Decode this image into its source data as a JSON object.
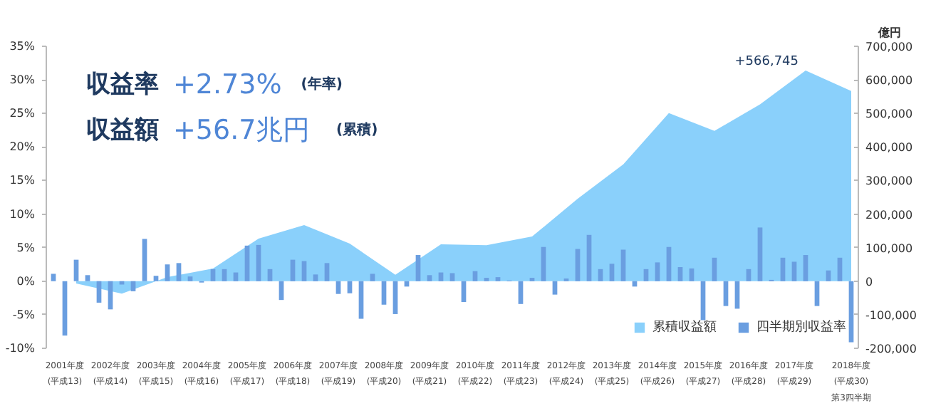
{
  "chart_data": {
    "type": "bar",
    "annotations": [
      "収益率 +2.73% (年率)",
      "収益額 +56.7兆円 (累積)",
      "+566,745"
    ],
    "categories": [
      null,
      "2001年度\n(平成13)",
      null,
      null,
      null,
      "2002年度\n(平成14)",
      null,
      null,
      null,
      "2003年度\n(平成15)",
      null,
      null,
      null,
      "2004年度\n(平成16)",
      null,
      null,
      null,
      "2005年度\n(平成17)",
      null,
      null,
      null,
      "2006年度\n(平成18)",
      null,
      null,
      null,
      "2007年度\n(平成19)",
      null,
      null,
      null,
      "2008年度\n(平成20)",
      null,
      null,
      null,
      "2009年度\n(平成21)",
      null,
      null,
      null,
      "2010年度\n(平成22)",
      null,
      null,
      null,
      "2011年度\n(平成23)",
      null,
      null,
      null,
      "2012年度\n(平成24)",
      null,
      null,
      null,
      "2013年度\n(平成25)",
      null,
      null,
      null,
      "2014年度\n(平成26)",
      null,
      null,
      null,
      "2015年度\n(平成27)",
      null,
      null,
      null,
      "2016年度\n(平成28)",
      null,
      null,
      null,
      "2017年度\n(平成29)",
      null,
      null,
      null,
      null,
      "2018年度\n(平成30)\n第3四半期"
    ],
    "ylim": [
      -10,
      35
    ],
    "yticks": [
      {
        "value": -10,
        "label": "-10%"
      },
      {
        "value": -5,
        "label": "-5%"
      },
      {
        "value": 0,
        "label": "0%"
      },
      {
        "value": 5,
        "label": "5%"
      },
      {
        "value": 10,
        "label": "10%"
      },
      {
        "value": 15,
        "label": "15%"
      },
      {
        "value": 20,
        "label": "20%"
      },
      {
        "value": 25,
        "label": "25%"
      },
      {
        "value": 30,
        "label": "30%"
      },
      {
        "value": 35,
        "label": "35%"
      }
    ],
    "y2label": "億円",
    "y2lim": [
      -200000,
      700000
    ],
    "y2ticks": [
      {
        "value": -200000,
        "label": "-200,000"
      },
      {
        "value": -100000,
        "label": "-100,000"
      },
      0,
      {
        "value": 100000,
        "label": "100,000"
      },
      {
        "value": 200000,
        "label": "200,000"
      },
      {
        "value": 300000,
        "label": "300,000"
      },
      {
        "value": 400000,
        "label": "400,000"
      },
      {
        "value": 500000,
        "label": "500,000"
      },
      {
        "value": 600000,
        "label": "600,000"
      },
      {
        "value": 700000,
        "label": "700,000"
      }
    ],
    "grid": false,
    "legend": "bottom right",
    "series": [
      {
        "name": "累積収益額",
        "type": "area",
        "axis": "y2",
        "color": "#8ad0fb",
        "values": [
          null,
          null,
          -7000,
          null,
          null,
          null,
          -37000,
          null,
          null,
          null,
          12000,
          null,
          null,
          null,
          38000,
          null,
          null,
          null,
          127000,
          null,
          null,
          null,
          167000,
          null,
          null,
          null,
          112000,
          null,
          null,
          null,
          19000,
          null,
          null,
          null,
          110000,
          null,
          null,
          null,
          107000,
          null,
          null,
          null,
          133000,
          null,
          null,
          null,
          246000,
          null,
          null,
          null,
          348000,
          null,
          null,
          null,
          501000,
          null,
          null,
          null,
          448000,
          null,
          null,
          null,
          527000,
          null,
          null,
          null,
          628000,
          null,
          null,
          null,
          566745
        ]
      },
      {
        "name": "四半期別収益率",
        "color": "#6a9ee0",
        "values": [
          1.1,
          -8.1,
          3.2,
          0.9,
          -3.2,
          -4.2,
          -0.5,
          -1.5,
          6.3,
          0.8,
          2.5,
          2.7,
          0.7,
          -0.2,
          1.8,
          1.8,
          1.3,
          5.3,
          5.4,
          1.8,
          -2.8,
          3.2,
          3.0,
          1.0,
          2.7,
          -1.9,
          -1.8,
          -5.6,
          1.1,
          -3.5,
          -4.9,
          -0.8,
          3.9,
          0.9,
          1.3,
          1.2,
          -3.1,
          1.5,
          0.5,
          0.6,
          0.1,
          -3.4,
          0.5,
          5.1,
          -2.0,
          0.4,
          4.8,
          6.9,
          1.8,
          2.6,
          4.7,
          -0.8,
          1.8,
          2.8,
          5.1,
          2.1,
          1.9,
          -5.8,
          3.5,
          -3.7,
          -4.1,
          1.8,
          8.0,
          0.2,
          3.5,
          2.9,
          3.9,
          -3.7,
          1.6,
          3.5,
          -9.1
        ]
      }
    ]
  }
}
